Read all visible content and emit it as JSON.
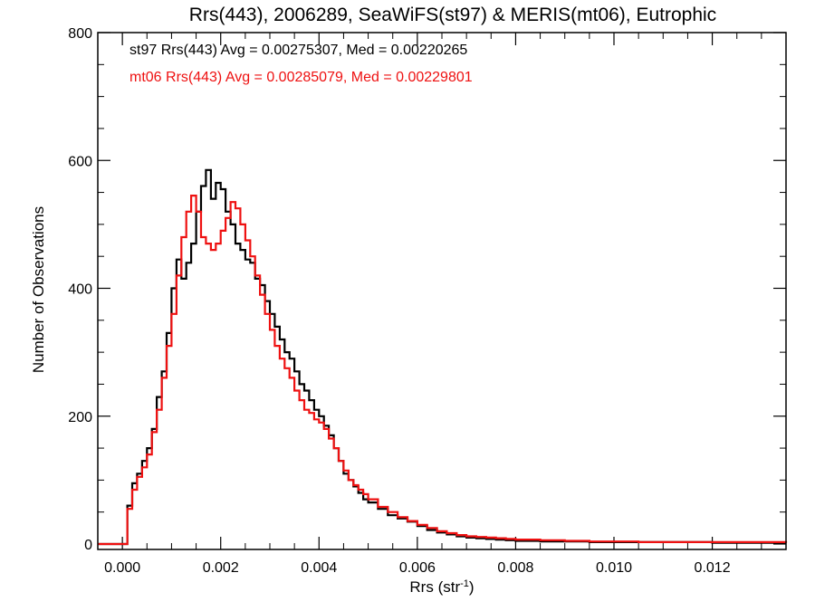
{
  "chart_data": {
    "type": "histogram",
    "title": "Rrs(443), 2006289, SeaWiFS(st97) & MERIS(mt06), Eutrophic",
    "xlabel": "Rrs (str",
    "xlabel_sup": "-1",
    "xlabel_end": ")",
    "ylabel": "Number of Observations",
    "xlim": [
      -0.0005,
      0.0135
    ],
    "ylim": [
      0,
      800
    ],
    "xticks": [
      0.0,
      0.002,
      0.004,
      0.006,
      0.008,
      0.01,
      0.012
    ],
    "xtick_labels": [
      "0.000",
      "0.002",
      "0.004",
      "0.006",
      "0.008",
      "0.010",
      "0.012"
    ],
    "yticks": [
      0,
      200,
      400,
      600,
      800
    ],
    "ytick_labels": [
      "0",
      "200",
      "400",
      "600",
      "800"
    ],
    "grid": false,
    "legend_position": "top-left",
    "series": [
      {
        "name": "st97",
        "label": "st97 Rrs(443) Avg = 0.00275307, Med = 0.00220265",
        "color": "#000000",
        "points": [
          [
            -0.0005,
            0
          ],
          [
            0,
            0
          ],
          [
            0.0001,
            60
          ],
          [
            0.0002,
            95
          ],
          [
            0.0003,
            110
          ],
          [
            0.0004,
            130
          ],
          [
            0.0005,
            150
          ],
          [
            0.0006,
            180
          ],
          [
            0.0007,
            230
          ],
          [
            0.0008,
            270
          ],
          [
            0.0009,
            330
          ],
          [
            0.001,
            400
          ],
          [
            0.0011,
            445
          ],
          [
            0.0012,
            415
          ],
          [
            0.0013,
            440
          ],
          [
            0.0014,
            470
          ],
          [
            0.0015,
            520
          ],
          [
            0.0016,
            560
          ],
          [
            0.0017,
            585
          ],
          [
            0.0018,
            540
          ],
          [
            0.0019,
            565
          ],
          [
            0.002,
            555
          ],
          [
            0.0021,
            520
          ],
          [
            0.0022,
            500
          ],
          [
            0.0023,
            470
          ],
          [
            0.0024,
            460
          ],
          [
            0.0025,
            445
          ],
          [
            0.0026,
            440
          ],
          [
            0.0027,
            415
          ],
          [
            0.0028,
            405
          ],
          [
            0.0029,
            380
          ],
          [
            0.003,
            360
          ],
          [
            0.0031,
            340
          ],
          [
            0.0032,
            320
          ],
          [
            0.0033,
            300
          ],
          [
            0.0034,
            290
          ],
          [
            0.0035,
            270
          ],
          [
            0.0036,
            250
          ],
          [
            0.0037,
            240
          ],
          [
            0.0038,
            225
          ],
          [
            0.0039,
            210
          ],
          [
            0.004,
            200
          ],
          [
            0.0041,
            185
          ],
          [
            0.0042,
            170
          ],
          [
            0.0043,
            150
          ],
          [
            0.0044,
            130
          ],
          [
            0.0045,
            110
          ],
          [
            0.0046,
            100
          ],
          [
            0.0047,
            90
          ],
          [
            0.0048,
            80
          ],
          [
            0.0049,
            70
          ],
          [
            0.005,
            65
          ],
          [
            0.0052,
            55
          ],
          [
            0.0054,
            45
          ],
          [
            0.0056,
            40
          ],
          [
            0.0058,
            35
          ],
          [
            0.006,
            28
          ],
          [
            0.0062,
            22
          ],
          [
            0.0064,
            18
          ],
          [
            0.0066,
            15
          ],
          [
            0.0068,
            12
          ],
          [
            0.007,
            10
          ],
          [
            0.0072,
            9
          ],
          [
            0.0074,
            8
          ],
          [
            0.0076,
            7
          ],
          [
            0.0078,
            6
          ],
          [
            0.008,
            5
          ],
          [
            0.0085,
            4
          ],
          [
            0.009,
            4
          ],
          [
            0.0095,
            3
          ],
          [
            0.01,
            3
          ],
          [
            0.0105,
            3
          ],
          [
            0.011,
            3
          ],
          [
            0.012,
            2
          ],
          [
            0.0135,
            2
          ]
        ]
      },
      {
        "name": "mt06",
        "label": "mt06 Rrs(443) Avg = 0.00285079, Med = 0.00229801",
        "color": "#ee1111",
        "points": [
          [
            -0.0005,
            0
          ],
          [
            0,
            0
          ],
          [
            0.0001,
            55
          ],
          [
            0.0002,
            85
          ],
          [
            0.0003,
            105
          ],
          [
            0.0004,
            120
          ],
          [
            0.0005,
            140
          ],
          [
            0.0006,
            175
          ],
          [
            0.0007,
            210
          ],
          [
            0.0008,
            260
          ],
          [
            0.0009,
            310
          ],
          [
            0.001,
            360
          ],
          [
            0.0011,
            420
          ],
          [
            0.0012,
            480
          ],
          [
            0.0013,
            520
          ],
          [
            0.0014,
            545
          ],
          [
            0.0015,
            520
          ],
          [
            0.0016,
            480
          ],
          [
            0.0017,
            470
          ],
          [
            0.0018,
            460
          ],
          [
            0.0019,
            470
          ],
          [
            0.002,
            490
          ],
          [
            0.0021,
            510
          ],
          [
            0.0022,
            535
          ],
          [
            0.0023,
            525
          ],
          [
            0.0024,
            500
          ],
          [
            0.0025,
            475
          ],
          [
            0.0026,
            450
          ],
          [
            0.0027,
            420
          ],
          [
            0.0028,
            390
          ],
          [
            0.0029,
            360
          ],
          [
            0.003,
            335
          ],
          [
            0.0031,
            310
          ],
          [
            0.0032,
            290
          ],
          [
            0.0033,
            275
          ],
          [
            0.0034,
            260
          ],
          [
            0.0035,
            240
          ],
          [
            0.0036,
            225
          ],
          [
            0.0037,
            210
          ],
          [
            0.0038,
            205
          ],
          [
            0.0039,
            195
          ],
          [
            0.004,
            190
          ],
          [
            0.0041,
            180
          ],
          [
            0.0042,
            165
          ],
          [
            0.0043,
            150
          ],
          [
            0.0044,
            130
          ],
          [
            0.0045,
            115
          ],
          [
            0.0046,
            100
          ],
          [
            0.0047,
            92
          ],
          [
            0.0048,
            85
          ],
          [
            0.0049,
            78
          ],
          [
            0.005,
            70
          ],
          [
            0.0052,
            58
          ],
          [
            0.0054,
            50
          ],
          [
            0.0056,
            42
          ],
          [
            0.0058,
            36
          ],
          [
            0.006,
            30
          ],
          [
            0.0062,
            25
          ],
          [
            0.0064,
            20
          ],
          [
            0.0066,
            17
          ],
          [
            0.0068,
            14
          ],
          [
            0.007,
            12
          ],
          [
            0.0072,
            11
          ],
          [
            0.0074,
            10
          ],
          [
            0.0076,
            9
          ],
          [
            0.0078,
            8
          ],
          [
            0.008,
            7
          ],
          [
            0.0085,
            6
          ],
          [
            0.009,
            5
          ],
          [
            0.0095,
            4
          ],
          [
            0.01,
            4
          ],
          [
            0.0105,
            3
          ],
          [
            0.011,
            3
          ],
          [
            0.012,
            3
          ],
          [
            0.0135,
            2
          ]
        ]
      }
    ]
  }
}
